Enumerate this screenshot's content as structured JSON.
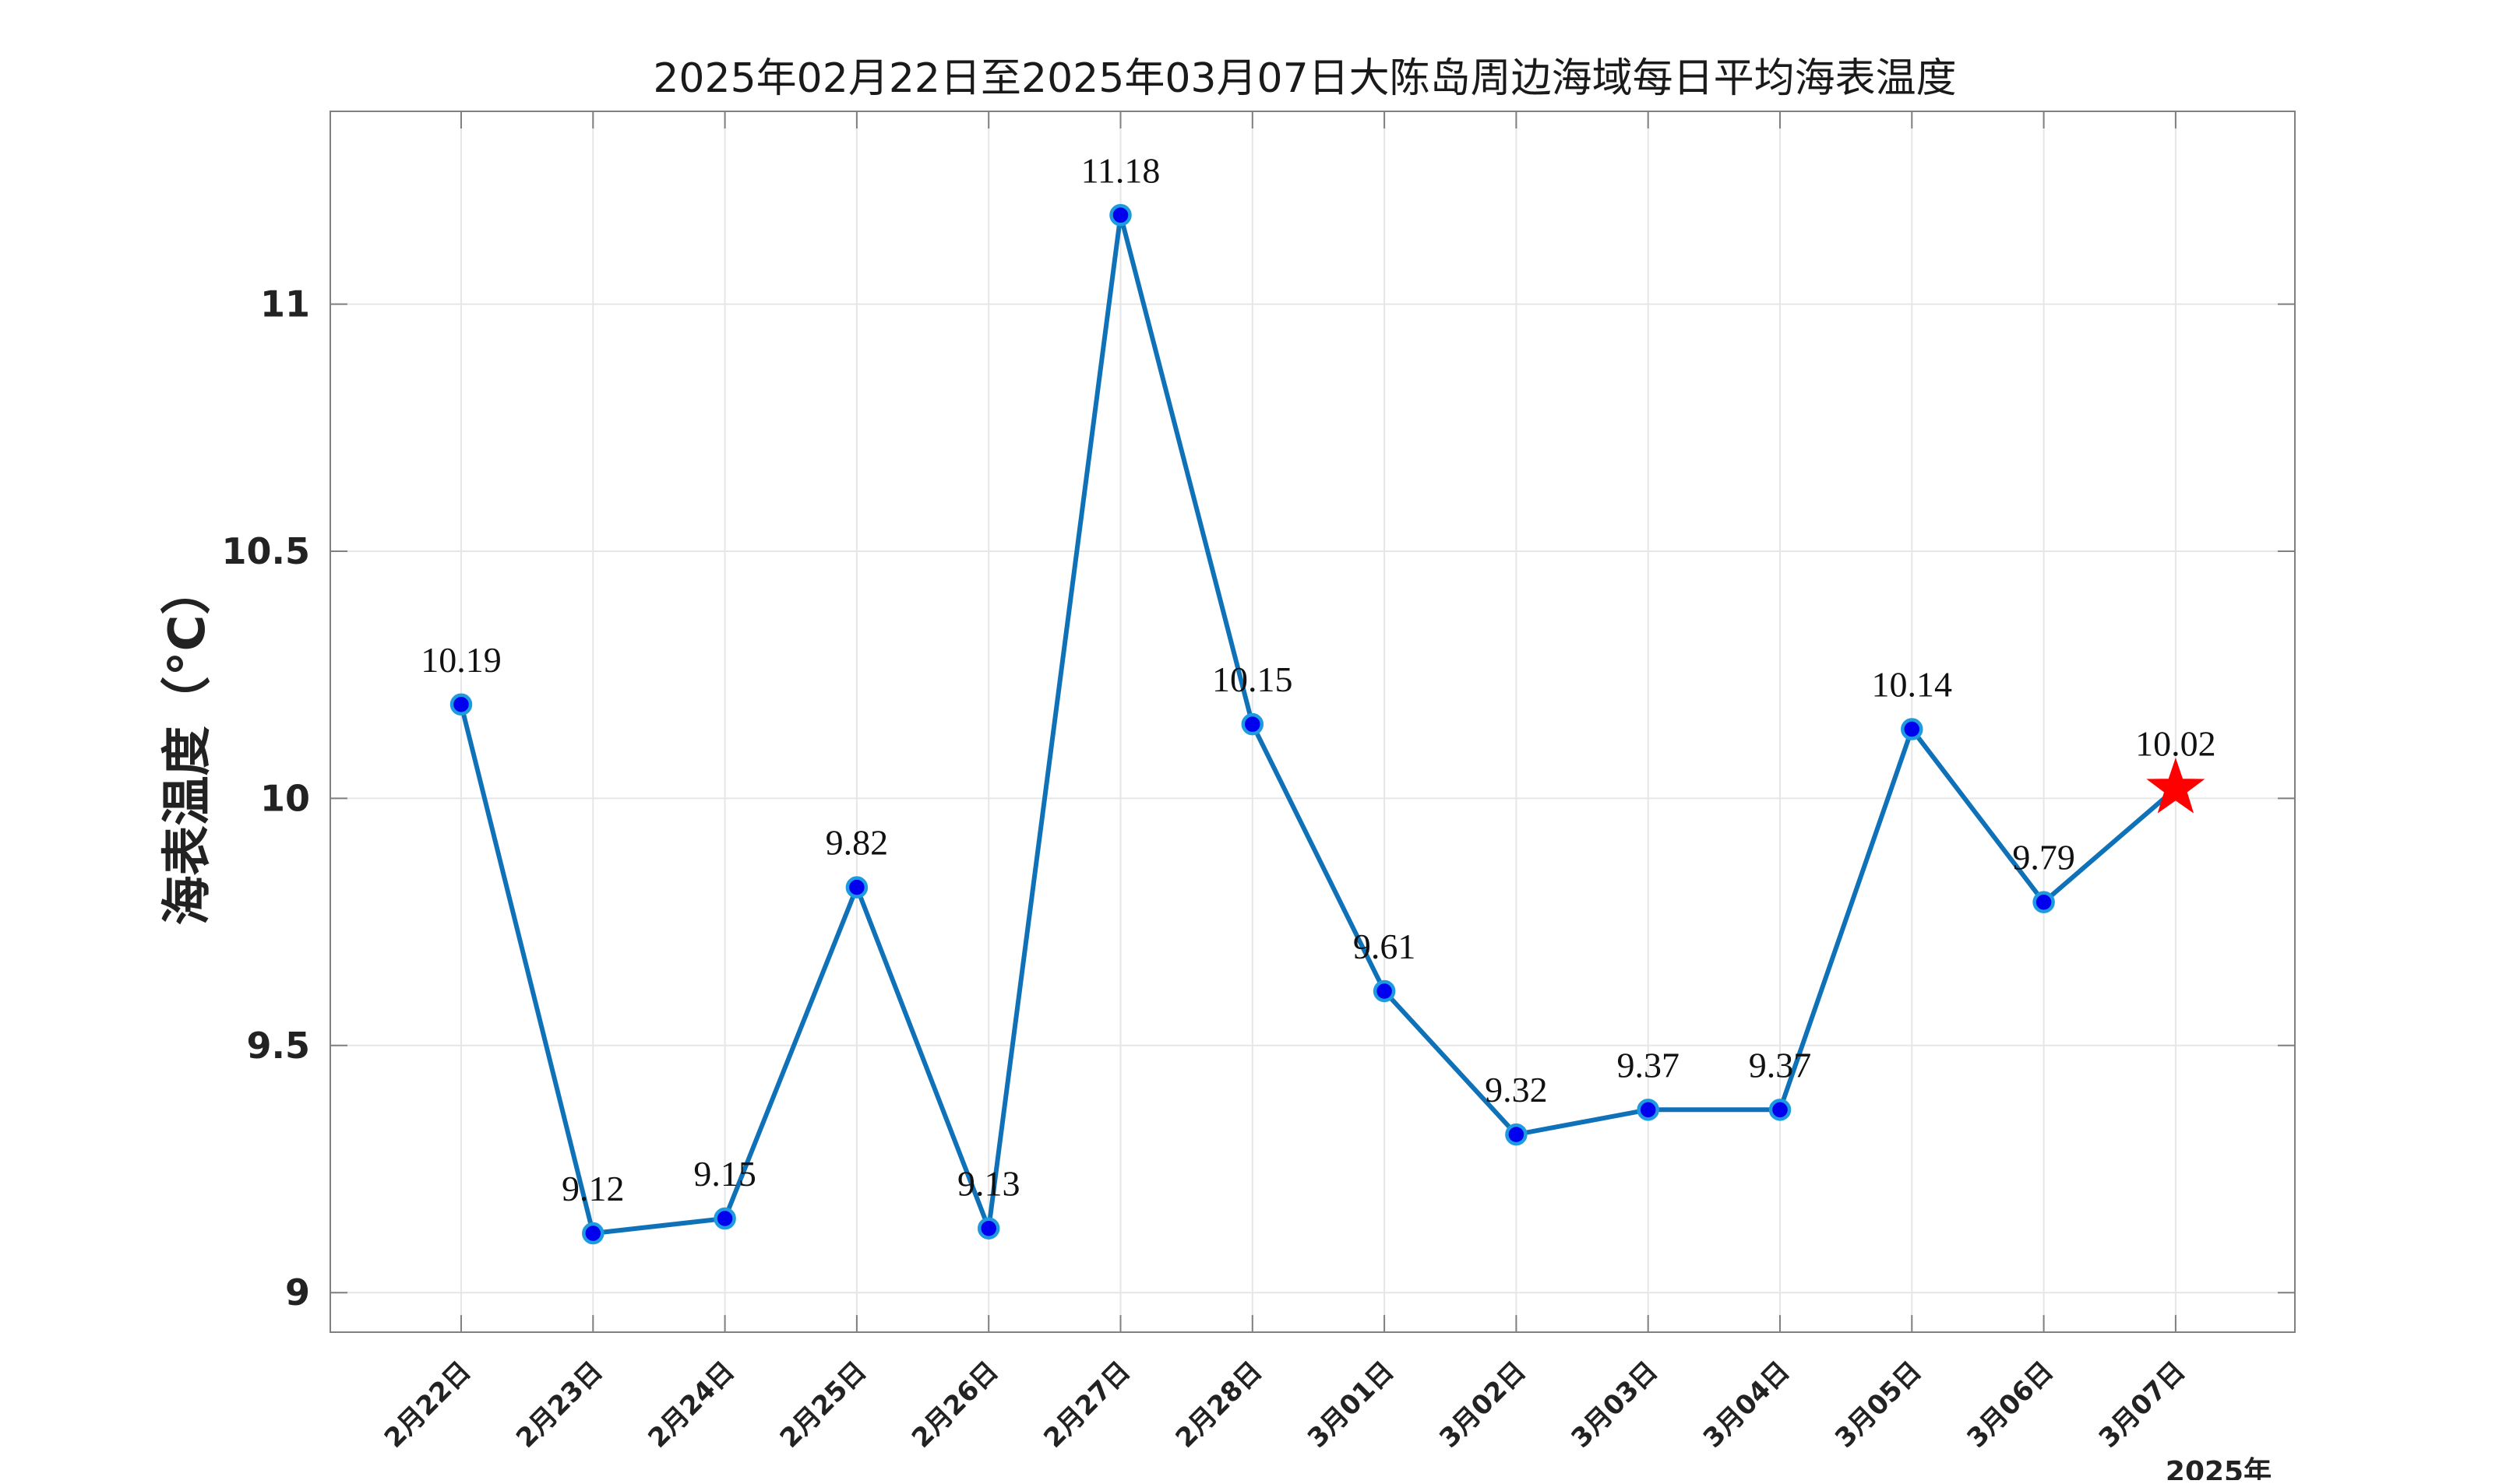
{
  "chart_data": {
    "type": "line",
    "title": "2025年02月22日至2025年03月07日大陈岛周边海域每日平均海表温度",
    "ylabel": "海表温度（°C）",
    "xlabel": "",
    "year_label": "2025年",
    "categories": [
      "2月22日",
      "2月23日",
      "2月24日",
      "2月25日",
      "2月26日",
      "2月27日",
      "2月28日",
      "3月01日",
      "3月02日",
      "3月03日",
      "3月04日",
      "3月05日",
      "3月06日",
      "3月07日"
    ],
    "series": [
      {
        "values": [
          10.19,
          9.12,
          9.15,
          9.82,
          9.13,
          11.18,
          10.15,
          9.61,
          9.32,
          9.37,
          9.37,
          10.14,
          9.79,
          10.02
        ]
      }
    ],
    "data_labels": [
      "10.19",
      "9.12",
      "9.15",
      "9.82",
      "9.13",
      "11.18",
      "10.15",
      "9.61",
      "9.32",
      "9.37",
      "9.37",
      "10.14",
      "9.79",
      "10.02"
    ],
    "ylim": [
      8.92,
      11.39
    ],
    "yticks": [
      9,
      9.5,
      10,
      10.5,
      11
    ],
    "ytick_labels": [
      "9",
      "9.5",
      "10",
      "10.5",
      "11"
    ],
    "grid": true,
    "highlight_last_point": "star",
    "colors": {
      "line": "#0F72B8",
      "marker_fill": "#0000EE",
      "marker_edge": "#1E9BE0",
      "star": "#FF0000",
      "grid": "#E6E6E6",
      "axes": "#808080"
    }
  }
}
